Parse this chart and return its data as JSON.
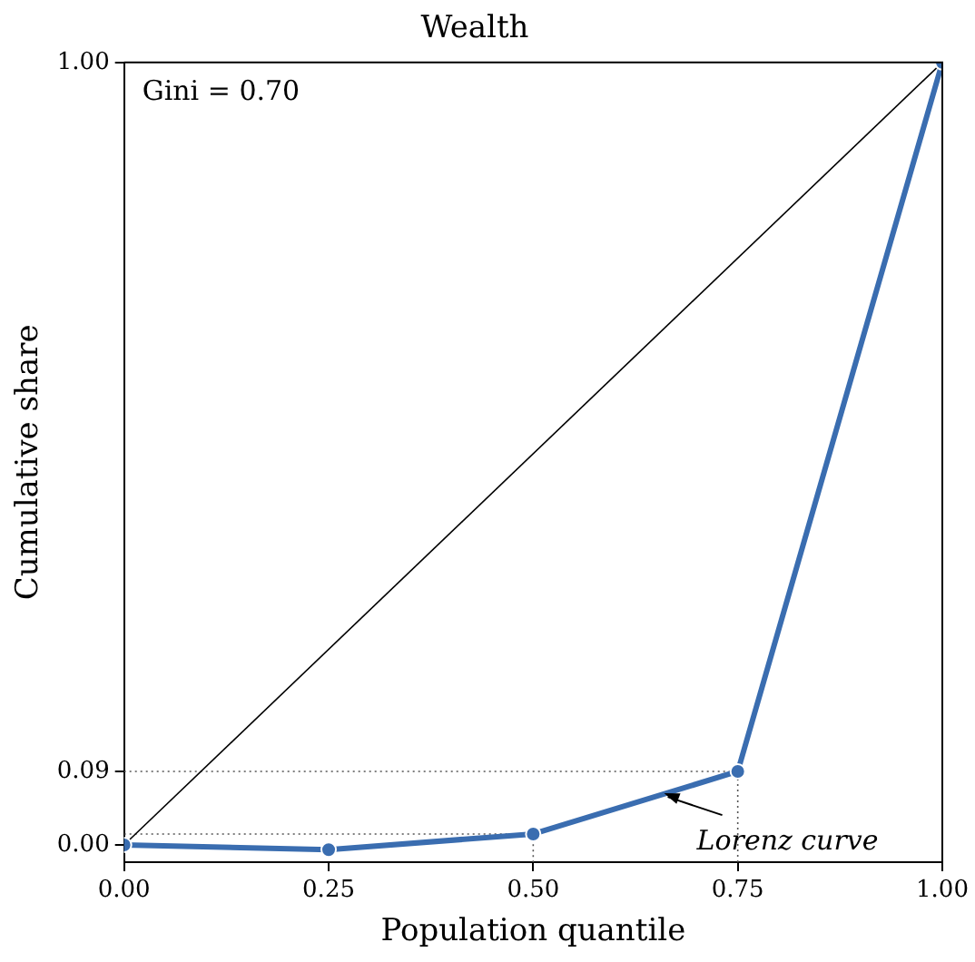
{
  "chart_data": {
    "type": "line",
    "title": "Wealth",
    "xlabel": "Population quantile",
    "ylabel": "Cumulative share",
    "xlim": [
      0,
      1
    ],
    "xticks": [
      {
        "value": 0,
        "label": "0.00"
      },
      {
        "value": 0.25,
        "label": "0.25"
      },
      {
        "value": 0.5,
        "label": "0.50"
      },
      {
        "value": 0.75,
        "label": "0.75"
      },
      {
        "value": 1,
        "label": "1.00"
      }
    ],
    "ylim": [
      -0.022,
      1
    ],
    "yticks": [
      {
        "value": 0,
        "label": "0.00"
      },
      {
        "value": 0.094,
        "label": "0.09"
      },
      {
        "value": 1,
        "label": "1.00"
      }
    ],
    "grid": false,
    "legend": false,
    "series": [
      {
        "color": "#555555",
        "x": [
          0,
          0.75,
          0.75
        ],
        "values": [
          0.094,
          0.094,
          -0.022
        ],
        "marker": "none",
        "line_style": "dotted"
      },
      {
        "color": "#555555",
        "x": [
          0,
          0.5,
          0.5
        ],
        "values": [
          0.014,
          0.014,
          -0.022
        ],
        "marker": "none",
        "line_style": "dotted"
      },
      {
        "color": "#000000",
        "x": [
          0,
          1
        ],
        "values": [
          0,
          1
        ],
        "marker": "none",
        "line_style": "solid"
      },
      {
        "color": "#3a6db0",
        "x": [
          0,
          0.25,
          0.5,
          0.75,
          1
        ],
        "values": [
          0,
          -0.006,
          0.014,
          0.094,
          1
        ],
        "marker": "circle",
        "line_style": "solid"
      }
    ],
    "annotations": [
      "Gini = 0.70",
      {
        "text": "Lorenz curve",
        "x": 0.66,
        "y": 0.066
      }
    ]
  }
}
